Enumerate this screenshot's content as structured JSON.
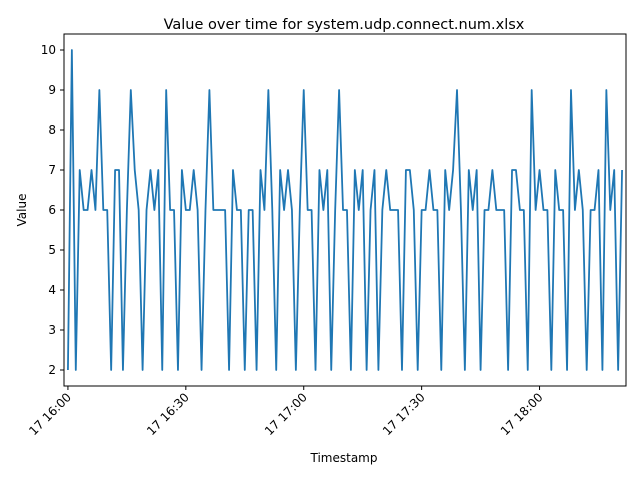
{
  "chart_data": {
    "type": "line",
    "title": "Value over time for system.udp.connect.num.xlsx",
    "xlabel": "Timestamp",
    "ylabel": "Value",
    "grid": false,
    "legend": "none",
    "x_unit": "minutes",
    "xlim": [
      "17 15:59",
      "18:22"
    ],
    "ylim": [
      1.6,
      10.4
    ],
    "yticks": [
      2,
      3,
      4,
      5,
      6,
      7,
      8,
      9,
      10
    ],
    "xticks": [
      {
        "label": "17 16:00",
        "value": "16:00"
      },
      {
        "label": "17 16:30",
        "value": "16:30"
      },
      {
        "label": "17 17:00",
        "value": "17:00"
      },
      {
        "label": "17 17:30",
        "value": "17:30"
      },
      {
        "label": "17 18:00",
        "value": "18:00"
      }
    ],
    "line_color": "#1f77b4",
    "series": [
      {
        "name": "",
        "x": [
          "16:00",
          "16:01",
          "16:02",
          "16:03",
          "16:04",
          "16:05",
          "16:06",
          "16:07",
          "16:08",
          "16:09",
          "16:10",
          "16:11",
          "16:12",
          "16:13",
          "16:14",
          "16:15",
          "16:16",
          "16:17",
          "16:18",
          "16:19",
          "16:20",
          "16:21",
          "16:22",
          "16:23",
          "16:24",
          "16:25",
          "16:26",
          "16:27",
          "16:28",
          "16:29",
          "16:30",
          "16:31",
          "16:32",
          "16:33",
          "16:34",
          "16:35",
          "16:36",
          "16:37",
          "16:38",
          "16:39",
          "16:40",
          "16:41",
          "16:42",
          "16:43",
          "16:44",
          "16:45",
          "16:46",
          "16:47",
          "16:48",
          "16:49",
          "16:50",
          "16:51",
          "16:52",
          "16:53",
          "16:54",
          "16:55",
          "16:56",
          "16:57",
          "16:58",
          "16:59",
          "17:00",
          "17:01",
          "17:02",
          "17:03",
          "17:04",
          "17:05",
          "17:06",
          "17:07",
          "17:08",
          "17:09",
          "17:10",
          "17:11",
          "17:12",
          "17:13",
          "17:14",
          "17:15",
          "17:16",
          "17:17",
          "17:18",
          "17:19",
          "17:20",
          "17:21",
          "17:22",
          "17:23",
          "17:24",
          "17:25",
          "17:26",
          "17:27",
          "17:28",
          "17:29",
          "17:30",
          "17:31",
          "17:32",
          "17:33",
          "17:34",
          "17:35",
          "17:36",
          "17:37",
          "17:38",
          "17:39",
          "17:40",
          "17:41",
          "17:42",
          "17:43",
          "17:44",
          "17:45",
          "17:46",
          "17:47",
          "17:48",
          "17:49",
          "17:50",
          "17:51",
          "17:52",
          "17:53",
          "17:54",
          "17:55",
          "17:56",
          "17:57",
          "17:58",
          "17:59",
          "18:00",
          "18:01",
          "18:02",
          "18:03",
          "18:04",
          "18:05",
          "18:06",
          "18:07",
          "18:08",
          "18:09",
          "18:10",
          "18:11",
          "18:12",
          "18:13",
          "18:14",
          "18:15",
          "18:16",
          "18:17",
          "18:18",
          "18:19",
          "18:20",
          "18:21"
        ],
        "values": [
          2,
          10,
          2,
          7,
          6,
          6,
          7,
          6,
          9,
          6,
          6,
          2,
          7,
          7,
          2,
          6,
          9,
          7,
          6,
          2,
          6,
          7,
          6,
          7,
          2,
          9,
          6,
          6,
          2,
          7,
          6,
          6,
          7,
          6,
          2,
          6,
          9,
          6,
          6,
          6,
          6,
          2,
          7,
          6,
          6,
          2,
          6,
          6,
          2,
          7,
          6,
          9,
          6,
          2,
          7,
          6,
          7,
          6,
          2,
          6,
          9,
          6,
          6,
          2,
          7,
          6,
          7,
          2,
          6,
          9,
          6,
          6,
          2,
          7,
          6,
          7,
          2,
          6,
          7,
          2,
          6,
          7,
          6,
          6,
          6,
          2,
          7,
          7,
          6,
          2,
          6,
          6,
          7,
          6,
          6,
          2,
          7,
          6,
          7,
          9,
          6,
          2,
          7,
          6,
          7,
          2,
          6,
          6,
          7,
          6,
          6,
          6,
          2,
          7,
          7,
          6,
          6,
          2,
          9,
          6,
          7,
          6,
          6,
          2,
          7,
          6,
          6,
          2,
          9,
          6,
          7,
          6,
          2,
          6,
          6,
          7,
          2,
          9,
          6,
          7,
          2,
          7
        ]
      }
    ]
  }
}
